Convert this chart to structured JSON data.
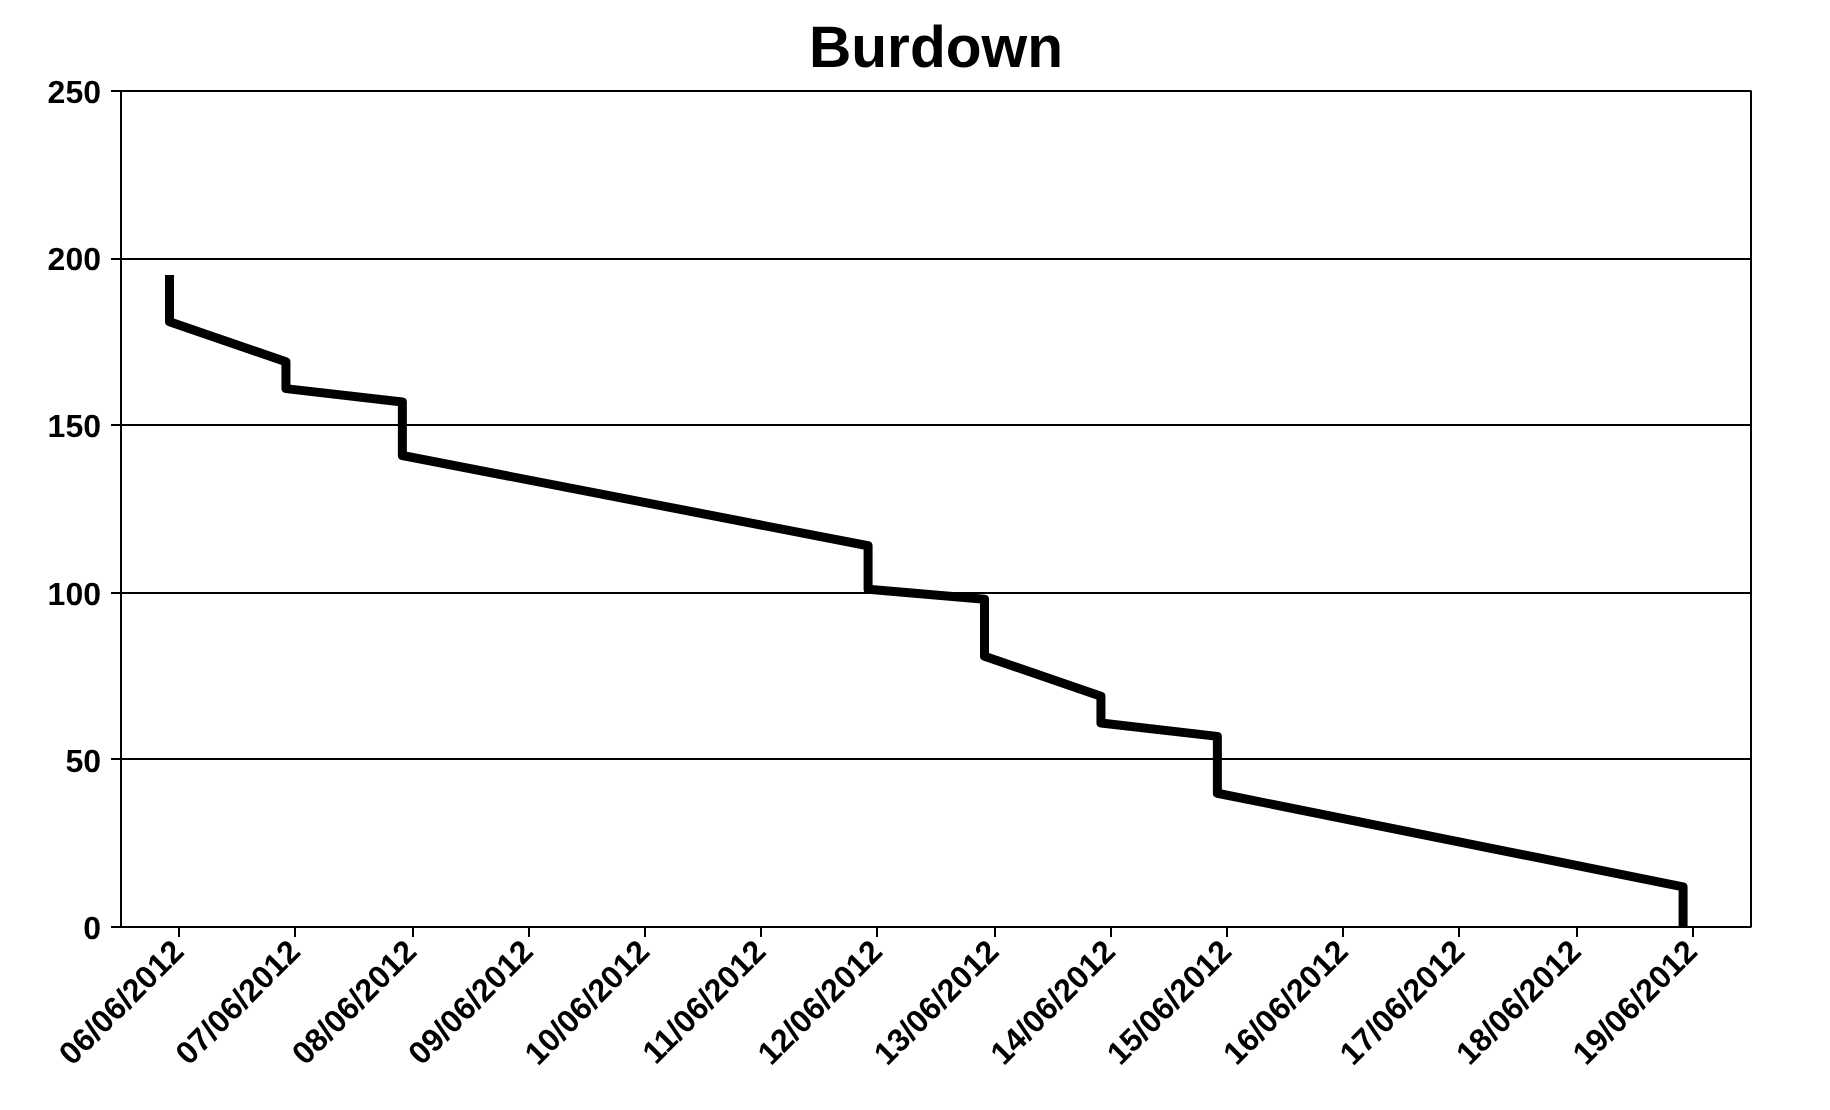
{
  "chart_data": {
    "type": "line",
    "title": "Burdown",
    "series": [
      {
        "color": "#000000",
        "x": [
          "2012-06-05T22:00",
          "2012-06-05T22:00",
          "2012-06-06T22:00",
          "2012-06-06T22:00",
          "2012-06-07T22:00",
          "2012-06-07T22:00",
          "2012-06-11T22:00",
          "2012-06-11T22:00",
          "2012-06-12T22:00",
          "2012-06-12T22:00",
          "2012-06-13T22:00",
          "2012-06-13T22:00",
          "2012-06-14T22:00",
          "2012-06-14T22:00",
          "2012-06-18T22:00",
          "2012-06-18T22:00"
        ],
        "values": [
          195,
          181,
          169,
          161,
          157,
          141,
          114,
          101,
          98,
          81,
          69,
          61,
          57,
          40,
          12,
          0
        ]
      }
    ],
    "xlim": [
      "2012-06-05T12:00",
      "2012-06-19T12:00"
    ],
    "xticks": [
      {
        "value": "2012-06-06",
        "label": "06/06/2012"
      },
      {
        "value": "2012-06-07",
        "label": "07/06/2012"
      },
      {
        "value": "2012-06-08",
        "label": "08/06/2012"
      },
      {
        "value": "2012-06-09",
        "label": "09/06/2012"
      },
      {
        "value": "2012-06-10",
        "label": "10/06/2012"
      },
      {
        "value": "2012-06-11",
        "label": "11/06/2012"
      },
      {
        "value": "2012-06-12",
        "label": "12/06/2012"
      },
      {
        "value": "2012-06-13",
        "label": "13/06/2012"
      },
      {
        "value": "2012-06-14",
        "label": "14/06/2012"
      },
      {
        "value": "2012-06-15",
        "label": "15/06/2012"
      },
      {
        "value": "2012-06-16",
        "label": "16/06/2012"
      },
      {
        "value": "2012-06-17",
        "label": "17/06/2012"
      },
      {
        "value": "2012-06-18",
        "label": "18/06/2012"
      },
      {
        "value": "2012-06-19",
        "label": "19/06/2012"
      }
    ],
    "ylim": [
      0,
      250
    ],
    "yticks": [
      0,
      50,
      100,
      150,
      200,
      250
    ],
    "grid": "y",
    "marker": "none",
    "line_style": "solid"
  }
}
